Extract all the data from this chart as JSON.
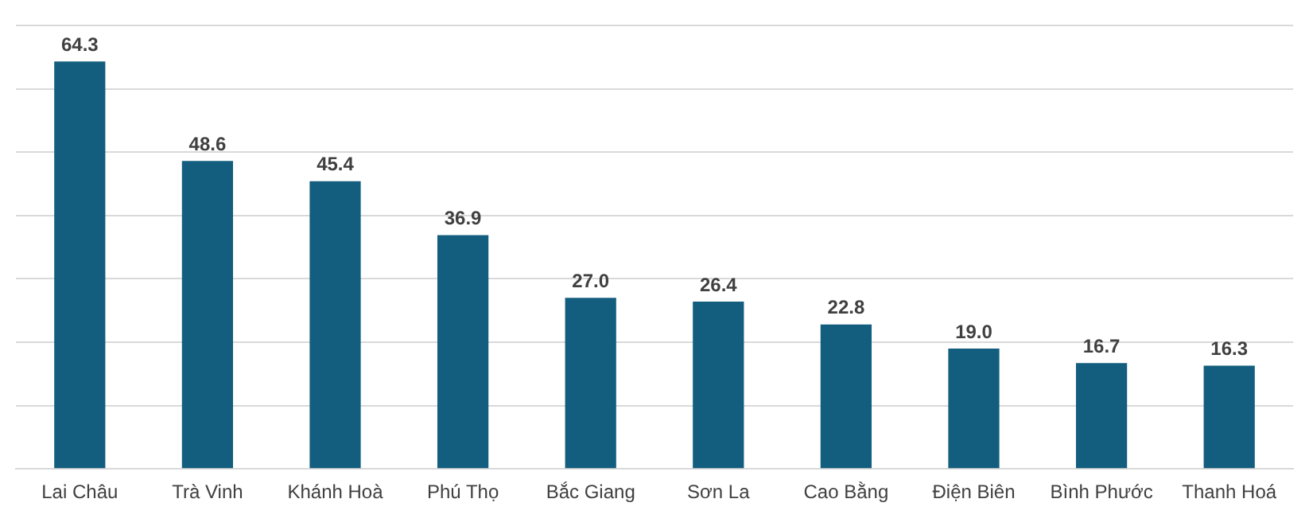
{
  "chart_data": {
    "type": "bar",
    "categories": [
      "Lai Châu",
      "Trà Vinh",
      "Khánh Hoà",
      "Phú Thọ",
      "Bắc Giang",
      "Sơn La",
      "Cao Bằng",
      "Điện Biên",
      "Bình Phước",
      "Thanh Hoá"
    ],
    "values": [
      64.3,
      48.6,
      45.4,
      36.9,
      27.0,
      26.4,
      22.8,
      19.0,
      16.7,
      16.3
    ],
    "value_labels": [
      "64.3",
      "48.6",
      "45.4",
      "36.9",
      "27.0",
      "26.4",
      "22.8",
      "19.0",
      "16.7",
      "16.3"
    ],
    "color": "#135e7e",
    "grid": "y",
    "tick_labels": "x",
    "ylim": [
      0,
      70
    ],
    "yticks": [
      {
        "value": 0,
        "label": null
      },
      {
        "value": 10,
        "label": null
      },
      {
        "value": 20,
        "label": null
      },
      {
        "value": 30,
        "label": null
      },
      {
        "value": 40,
        "label": null
      },
      {
        "value": 50,
        "label": null
      },
      {
        "value": 60,
        "label": null
      },
      {
        "value": 70,
        "label": null
      }
    ]
  }
}
